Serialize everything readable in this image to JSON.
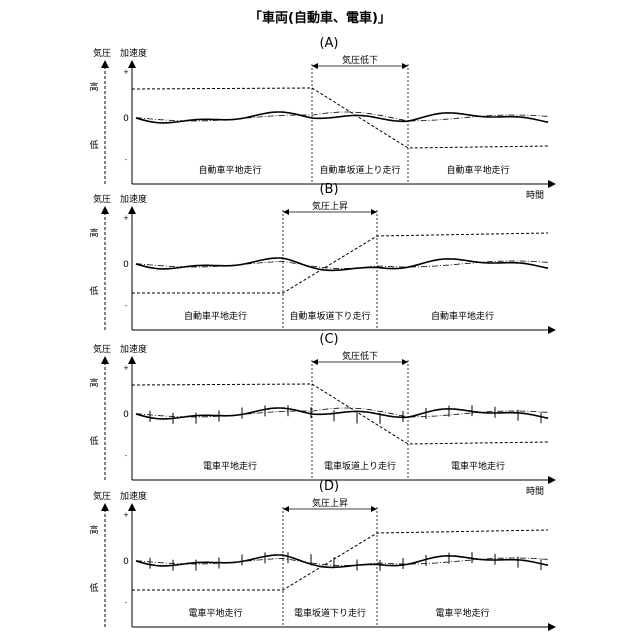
{
  "title": "「車両(自動車、電車)」",
  "panels": [
    {
      "label": "(A)",
      "y_axis_left": "気圧",
      "y_axis_right": "加速度",
      "high_label": "高",
      "low_label": "低",
      "plus_label": "+",
      "zero_label": "0",
      "minus_label": "-",
      "x_axis_label": "時間",
      "interval_label": "気圧低下",
      "segments": [
        "自動車平地走行",
        "自動車坂道上り走行",
        "自動車平地走行"
      ],
      "vehicle": "car",
      "pressure_trend": "decrease"
    },
    {
      "label": "(B)",
      "y_axis_left": "気圧",
      "y_axis_right": "加速度",
      "high_label": "高",
      "low_label": "低",
      "plus_label": "+",
      "zero_label": "0",
      "minus_label": "-",
      "x_axis_label": "",
      "interval_label": "気圧上昇",
      "segments": [
        "自動車平地走行",
        "自動車坂道下り走行",
        "自動車平地走行"
      ],
      "vehicle": "car",
      "pressure_trend": "increase"
    },
    {
      "label": "(C)",
      "y_axis_left": "気圧",
      "y_axis_right": "加速度",
      "high_label": "高",
      "low_label": "低",
      "plus_label": "+",
      "zero_label": "0",
      "minus_label": "-",
      "x_axis_label": "時間",
      "interval_label": "気圧低下",
      "segments": [
        "電車平地走行",
        "電車坂道上り走行",
        "電車平地走行"
      ],
      "vehicle": "train",
      "pressure_trend": "decrease"
    },
    {
      "label": "(D)",
      "y_axis_left": "気圧",
      "y_axis_right": "加速度",
      "high_label": "高",
      "low_label": "低",
      "plus_label": "+",
      "zero_label": "0",
      "minus_label": "-",
      "x_axis_label": "",
      "interval_label": "気圧上昇",
      "segments": [
        "電車平地走行",
        "電車坂道下り走行",
        "電車平地走行"
      ],
      "vehicle": "train",
      "pressure_trend": "increase"
    }
  ]
}
